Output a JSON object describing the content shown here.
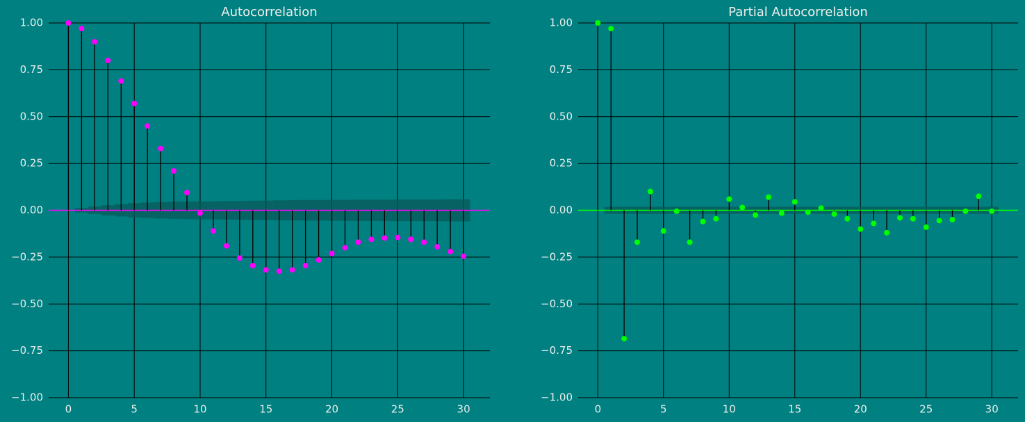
{
  "chart_data": [
    {
      "type": "stem",
      "title": "Autocorrelation",
      "color": "#ff00ff",
      "band_color": "#0a5a5a",
      "x": [
        0,
        1,
        2,
        3,
        4,
        5,
        6,
        7,
        8,
        9,
        10,
        11,
        12,
        13,
        14,
        15,
        16,
        17,
        18,
        19,
        20,
        21,
        22,
        23,
        24,
        25,
        26,
        27,
        28,
        29,
        30
      ],
      "values": [
        1.0,
        0.97,
        0.9,
        0.8,
        0.69,
        0.57,
        0.45,
        0.33,
        0.21,
        0.095,
        -0.015,
        -0.11,
        -0.19,
        -0.255,
        -0.295,
        -0.318,
        -0.325,
        -0.318,
        -0.295,
        -0.265,
        -0.23,
        -0.2,
        -0.17,
        -0.155,
        -0.148,
        -0.145,
        -0.155,
        -0.17,
        -0.195,
        -0.22,
        -0.245
      ],
      "confint": [
        null,
        0.012,
        0.02,
        0.027,
        0.033,
        0.038,
        0.041,
        0.044,
        0.046,
        0.047,
        0.048,
        0.048,
        0.049,
        0.05,
        0.051,
        0.052,
        0.053,
        0.054,
        0.055,
        0.055,
        0.056,
        0.056,
        0.057,
        0.057,
        0.057,
        0.058,
        0.058,
        0.058,
        0.058,
        0.059,
        0.059
      ],
      "xlim": [
        -1.5,
        32
      ],
      "ylim": [
        -1,
        1
      ],
      "xticks": [
        0,
        5,
        10,
        15,
        20,
        25,
        30
      ],
      "yticks": [
        {
          "value": -1,
          "label": "−1.00"
        },
        {
          "value": -0.75,
          "label": "−0.75"
        },
        {
          "value": -0.5,
          "label": "−0.50"
        },
        {
          "value": -0.25,
          "label": "−0.25"
        },
        {
          "value": 0,
          "label": "0.00"
        },
        {
          "value": 0.25,
          "label": "0.25"
        },
        {
          "value": 0.5,
          "label": "0.50"
        },
        {
          "value": 0.75,
          "label": "0.75"
        },
        {
          "value": 1,
          "label": "1.00"
        }
      ],
      "grid": true
    },
    {
      "type": "stem",
      "title": "Partial Autocorrelation",
      "color": "#00ff00",
      "band_color": "#0a5a5a",
      "x": [
        0,
        1,
        2,
        3,
        4,
        5,
        6,
        7,
        8,
        9,
        10,
        11,
        12,
        13,
        14,
        15,
        16,
        17,
        18,
        19,
        20,
        21,
        22,
        23,
        24,
        25,
        26,
        27,
        28,
        29,
        30
      ],
      "values": [
        1.0,
        0.97,
        -0.685,
        -0.17,
        0.1,
        -0.11,
        -0.005,
        -0.17,
        -0.06,
        -0.045,
        0.06,
        0.015,
        -0.025,
        0.07,
        -0.015,
        0.045,
        -0.01,
        0.012,
        -0.02,
        -0.045,
        -0.1,
        -0.07,
        -0.12,
        -0.04,
        -0.045,
        -0.09,
        -0.055,
        -0.05,
        -0.005,
        0.075,
        -0.005
      ],
      "confint": [
        null,
        0.019,
        0.019,
        0.019,
        0.019,
        0.019,
        0.019,
        0.019,
        0.019,
        0.019,
        0.019,
        0.019,
        0.019,
        0.019,
        0.019,
        0.019,
        0.019,
        0.019,
        0.019,
        0.019,
        0.019,
        0.019,
        0.019,
        0.019,
        0.019,
        0.019,
        0.019,
        0.019,
        0.019,
        0.019,
        0.019
      ],
      "xlim": [
        -1.5,
        32
      ],
      "ylim": [
        -1,
        1
      ],
      "xticks": [
        0,
        5,
        10,
        15,
        20,
        25,
        30
      ],
      "yticks": [
        {
          "value": -1,
          "label": "−1.00"
        },
        {
          "value": -0.75,
          "label": "−0.75"
        },
        {
          "value": -0.5,
          "label": "−0.50"
        },
        {
          "value": -0.25,
          "label": "−0.25"
        },
        {
          "value": 0,
          "label": "0.00"
        },
        {
          "value": 0.25,
          "label": "0.25"
        },
        {
          "value": 0.5,
          "label": "0.50"
        },
        {
          "value": 0.75,
          "label": "0.75"
        },
        {
          "value": 1,
          "label": "1.00"
        }
      ],
      "grid": true
    }
  ]
}
